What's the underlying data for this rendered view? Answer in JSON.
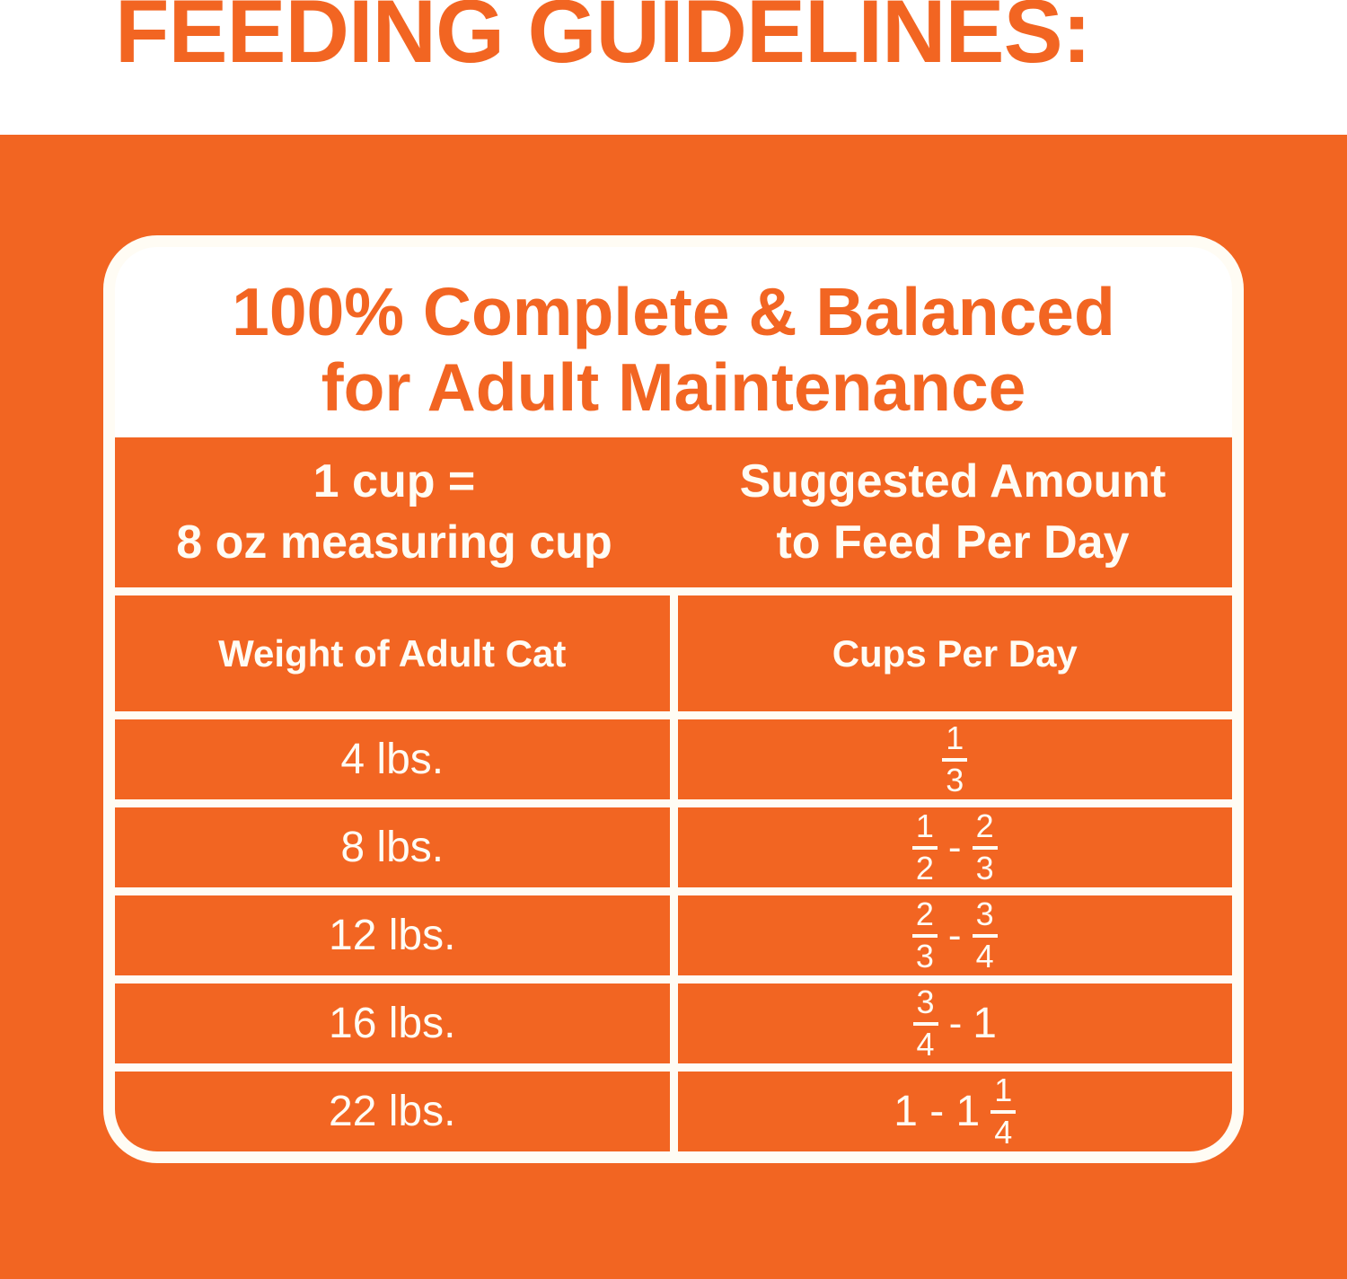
{
  "colors": {
    "orange": "#F26522",
    "cream_white": "#FFFCF4",
    "pure_white": "#FFFFFF"
  },
  "page_title": "FEEDING GUIDELINES:",
  "card": {
    "heading": {
      "line1": "100% Complete & Balanced",
      "line2": "for Adult Maintenance"
    },
    "cup_note": {
      "line1": "1 cup =",
      "line2": "8 oz measuring cup"
    },
    "amount_note": {
      "line1": "Suggested Amount",
      "line2": "to Feed Per Day"
    },
    "column_headers": {
      "weight": "Weight of Adult Cat",
      "cups": "Cups Per Day"
    },
    "rows": [
      {
        "weight": "4 lbs.",
        "cups": [
          {
            "type": "frac",
            "num": "1",
            "den": "3"
          }
        ]
      },
      {
        "weight": "8 lbs.",
        "cups": [
          {
            "type": "frac",
            "num": "1",
            "den": "2"
          },
          {
            "type": "dash",
            "value": "-"
          },
          {
            "type": "frac",
            "num": "2",
            "den": "3"
          }
        ]
      },
      {
        "weight": "12 lbs.",
        "cups": [
          {
            "type": "frac",
            "num": "2",
            "den": "3"
          },
          {
            "type": "dash",
            "value": "-"
          },
          {
            "type": "frac",
            "num": "3",
            "den": "4"
          }
        ]
      },
      {
        "weight": "16 lbs.",
        "cups": [
          {
            "type": "frac",
            "num": "3",
            "den": "4"
          },
          {
            "type": "dash",
            "value": "-"
          },
          {
            "type": "text",
            "value": "1"
          }
        ]
      },
      {
        "weight": "22 lbs.",
        "cups": [
          {
            "type": "text",
            "value": "1 - 1"
          },
          {
            "type": "frac",
            "num": "1",
            "den": "4"
          }
        ]
      }
    ]
  },
  "chart_data": {
    "type": "table",
    "title": "FEEDING GUIDELINES: 100% Complete & Balanced for Adult Maintenance",
    "note": "1 cup = 8 oz measuring cup",
    "columns": [
      "Weight of Adult Cat",
      "Cups Per Day"
    ],
    "rows": [
      [
        "4 lbs.",
        "1/3"
      ],
      [
        "8 lbs.",
        "1/2 - 2/3"
      ],
      [
        "12 lbs.",
        "2/3 - 3/4"
      ],
      [
        "16 lbs.",
        "3/4 - 1"
      ],
      [
        "22 lbs.",
        "1 - 1 1/4"
      ]
    ]
  }
}
